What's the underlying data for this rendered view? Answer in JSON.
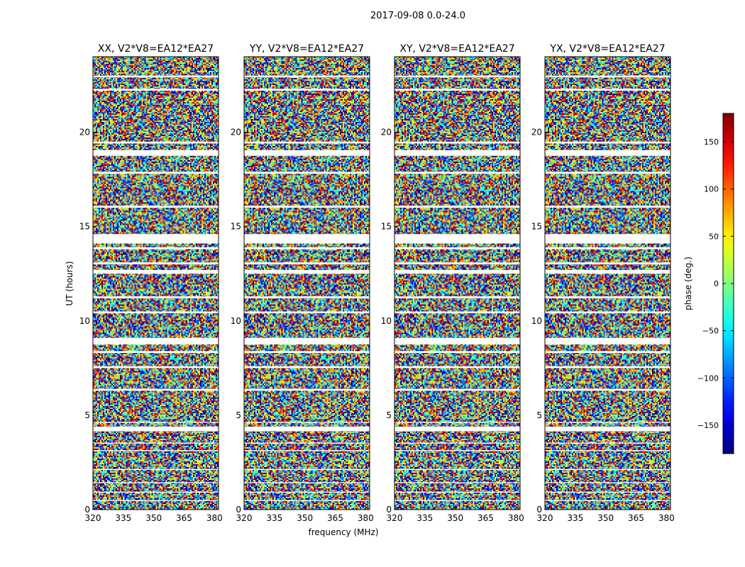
{
  "chart_data": {
    "type": "heatmap",
    "title": "2017-09-08 0.0-24.0",
    "xlabel": "frequency (MHz)",
    "ylabel": "UT (hours)",
    "xlim": [
      320,
      382
    ],
    "ylim": [
      0,
      24
    ],
    "x_ticks": [
      "320",
      "335",
      "350",
      "365",
      "380"
    ],
    "y_ticks": [
      "0",
      "5",
      "10",
      "15",
      "20"
    ],
    "panels": [
      {
        "id": "xx",
        "title": "XX, V2*V8=EA12*EA27"
      },
      {
        "id": "yy",
        "title": "YY, V2*V8=EA12*EA27"
      },
      {
        "id": "xy",
        "title": "XY, V2*V8=EA12*EA27"
      },
      {
        "id": "yx",
        "title": "YX, V2*V8=EA12*EA27"
      }
    ],
    "colorbar": {
      "label": "phase (deg.)",
      "range": [
        -180,
        180
      ],
      "ticks": [
        "150",
        "100",
        "50",
        "0",
        "−50",
        "−100",
        "−150"
      ],
      "tick_values": [
        150,
        100,
        50,
        0,
        -50,
        -100,
        -150
      ],
      "colormap": "jet"
    },
    "flagged_gaps_ut_hours": [
      [
        0.45,
        0.5
      ],
      [
        0.9,
        0.95
      ],
      [
        1.4,
        1.45
      ],
      [
        2.1,
        2.15
      ],
      [
        3.1,
        3.15
      ],
      [
        3.5,
        3.55
      ],
      [
        4.15,
        4.4
      ],
      [
        4.6,
        4.65
      ],
      [
        6.3,
        6.4
      ],
      [
        7.5,
        7.6
      ],
      [
        8.3,
        8.4
      ],
      [
        8.75,
        9.1
      ],
      [
        10.4,
        10.5
      ],
      [
        11.2,
        11.3
      ],
      [
        12.5,
        12.7
      ],
      [
        13.0,
        13.1
      ],
      [
        13.8,
        13.9
      ],
      [
        14.1,
        14.6
      ],
      [
        16.0,
        16.1
      ],
      [
        17.8,
        17.9
      ],
      [
        18.75,
        19.05
      ],
      [
        19.4,
        19.5
      ],
      [
        22.2,
        22.3
      ],
      [
        22.9,
        23.0
      ]
    ]
  }
}
